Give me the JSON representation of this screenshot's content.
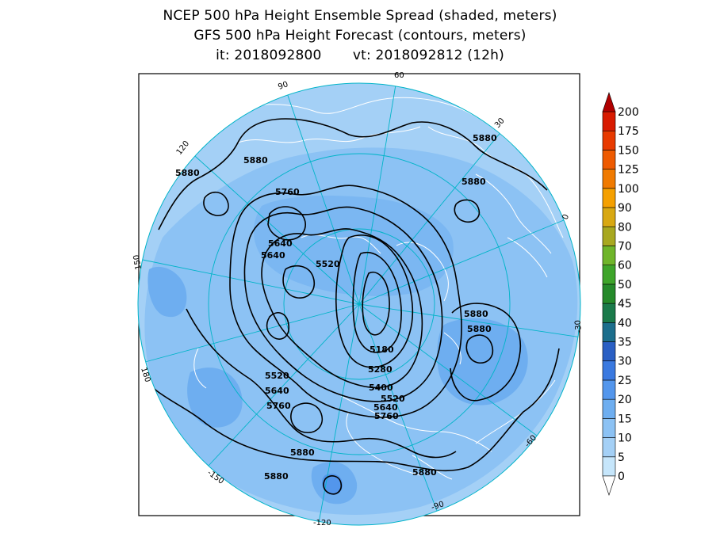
{
  "title": {
    "line1": "NCEP 500 hPa Height Ensemble Spread (shaded, meters)",
    "line2": "GFS 500 hPa Height Forecast (contours, meters)",
    "init_label": "it: 2018092800",
    "valid_label": "vt: 2018092812 (12h)"
  },
  "colorbar": {
    "levels": [
      "0",
      "5",
      "10",
      "15",
      "20",
      "25",
      "30",
      "35",
      "40",
      "45",
      "50",
      "60",
      "70",
      "80",
      "90",
      "100",
      "125",
      "150",
      "175",
      "200"
    ],
    "colors": [
      "#c6e6fb",
      "#a4d0f6",
      "#8cc2f4",
      "#6eaef0",
      "#5396ec",
      "#3a79e0",
      "#2a5fc4",
      "#1c6e8c",
      "#1a7a4a",
      "#258a2a",
      "#3ea52a",
      "#6fb52a",
      "#a8a820",
      "#d8a812",
      "#f5a000",
      "#f07a00",
      "#ee5a00",
      "#e83a00",
      "#d81a00",
      "#b00000"
    ]
  },
  "map": {
    "longitude_labels": [
      "60",
      "30",
      "0",
      "-30",
      "-60",
      "-90",
      "-120",
      "-150",
      "180",
      "150",
      "120",
      "90"
    ],
    "contour_labels": [
      "5880",
      "5880",
      "5880",
      "5880",
      "5760",
      "5640",
      "5640",
      "5520",
      "5880",
      "5880",
      "5180",
      "5280",
      "5400",
      "5520",
      "5640",
      "5760",
      "5520",
      "5640",
      "5760",
      "5880",
      "5880",
      "5880"
    ]
  },
  "colors": {
    "ocean_background": "#8cc2f4",
    "outer_map_fill": "#a4d0f6",
    "grid_lines": "#00b4c8",
    "coastlines": "#ffffff",
    "contours": "#000000"
  }
}
